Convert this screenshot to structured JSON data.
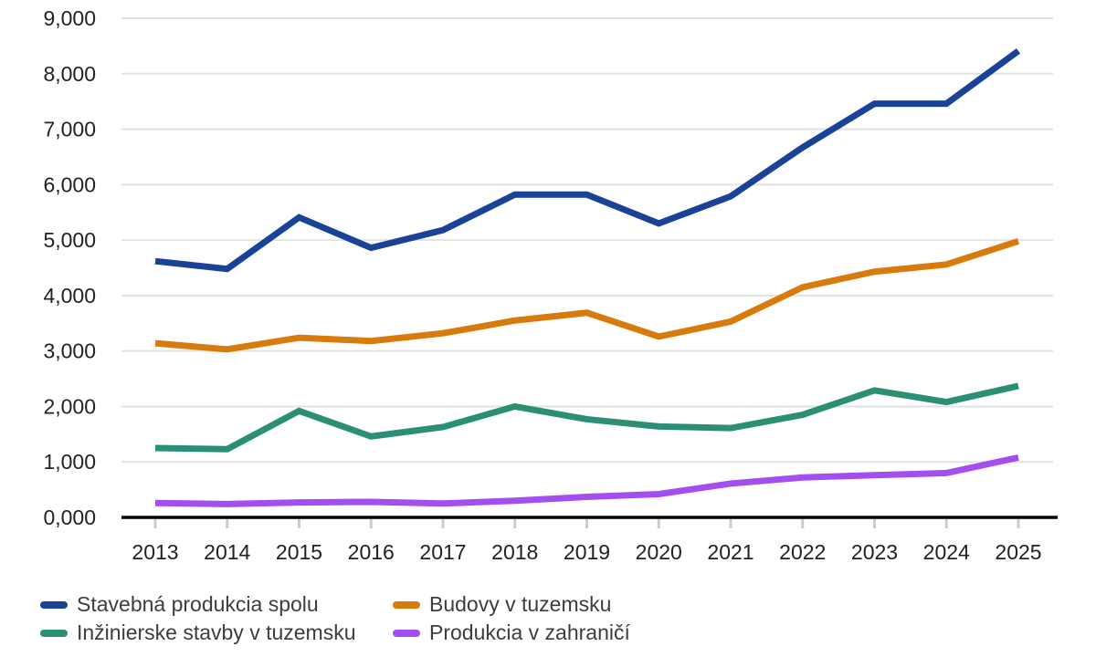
{
  "chart_data": {
    "type": "line",
    "title": "",
    "xlabel": "",
    "ylabel": "",
    "x_labels": [
      "2013",
      "2014",
      "2015",
      "2016",
      "2017",
      "2018",
      "2019",
      "2020",
      "2021",
      "2022",
      "2023",
      "2024",
      "2025"
    ],
    "ylim": [
      0,
      9
    ],
    "grid": "horizontal-only",
    "legend_position": "bottom-left two-column",
    "y_ticks": [
      {
        "value": 0,
        "label": "0,000"
      },
      {
        "value": 1,
        "label": "1,000"
      },
      {
        "value": 2,
        "label": "2,000"
      },
      {
        "value": 3,
        "label": "3,000"
      },
      {
        "value": 4,
        "label": "4,000"
      },
      {
        "value": 5,
        "label": "5,000"
      },
      {
        "value": 6,
        "label": "6,000"
      },
      {
        "value": 7,
        "label": "7,000"
      },
      {
        "value": 8,
        "label": "8,000"
      },
      {
        "value": 9,
        "label": "9,000"
      }
    ],
    "series": [
      {
        "name": "Stavebná produkcia spolu",
        "color": "#1a4296",
        "values": [
          4.62,
          4.48,
          5.41,
          4.86,
          5.18,
          5.82,
          5.82,
          5.3,
          5.79,
          6.67,
          7.46,
          7.46,
          8.41
        ]
      },
      {
        "name": "Budovy v tuzemsku",
        "color": "#d97a0d",
        "values": [
          3.14,
          3.03,
          3.24,
          3.18,
          3.32,
          3.55,
          3.69,
          3.26,
          3.53,
          4.15,
          4.43,
          4.56,
          4.98
        ]
      },
      {
        "name": "Inžinierske stavby v tuzemsku",
        "color": "#2b8f74",
        "values": [
          1.25,
          1.23,
          1.92,
          1.46,
          1.63,
          2.0,
          1.77,
          1.64,
          1.61,
          1.85,
          2.29,
          2.08,
          2.37
        ]
      },
      {
        "name": "Produkcia v zahraničí",
        "color": "#a34ff0",
        "values": [
          0.26,
          0.24,
          0.27,
          0.28,
          0.25,
          0.3,
          0.37,
          0.42,
          0.61,
          0.72,
          0.76,
          0.8,
          1.08
        ]
      }
    ],
    "style": {
      "gridline_color": "#e2e2e2",
      "axis_line_color": "#000000",
      "tick_color": "#cccccc",
      "axis_text_color": "#222222",
      "legend_text_color": "#3d3d3d",
      "background": "#ffffff"
    }
  }
}
